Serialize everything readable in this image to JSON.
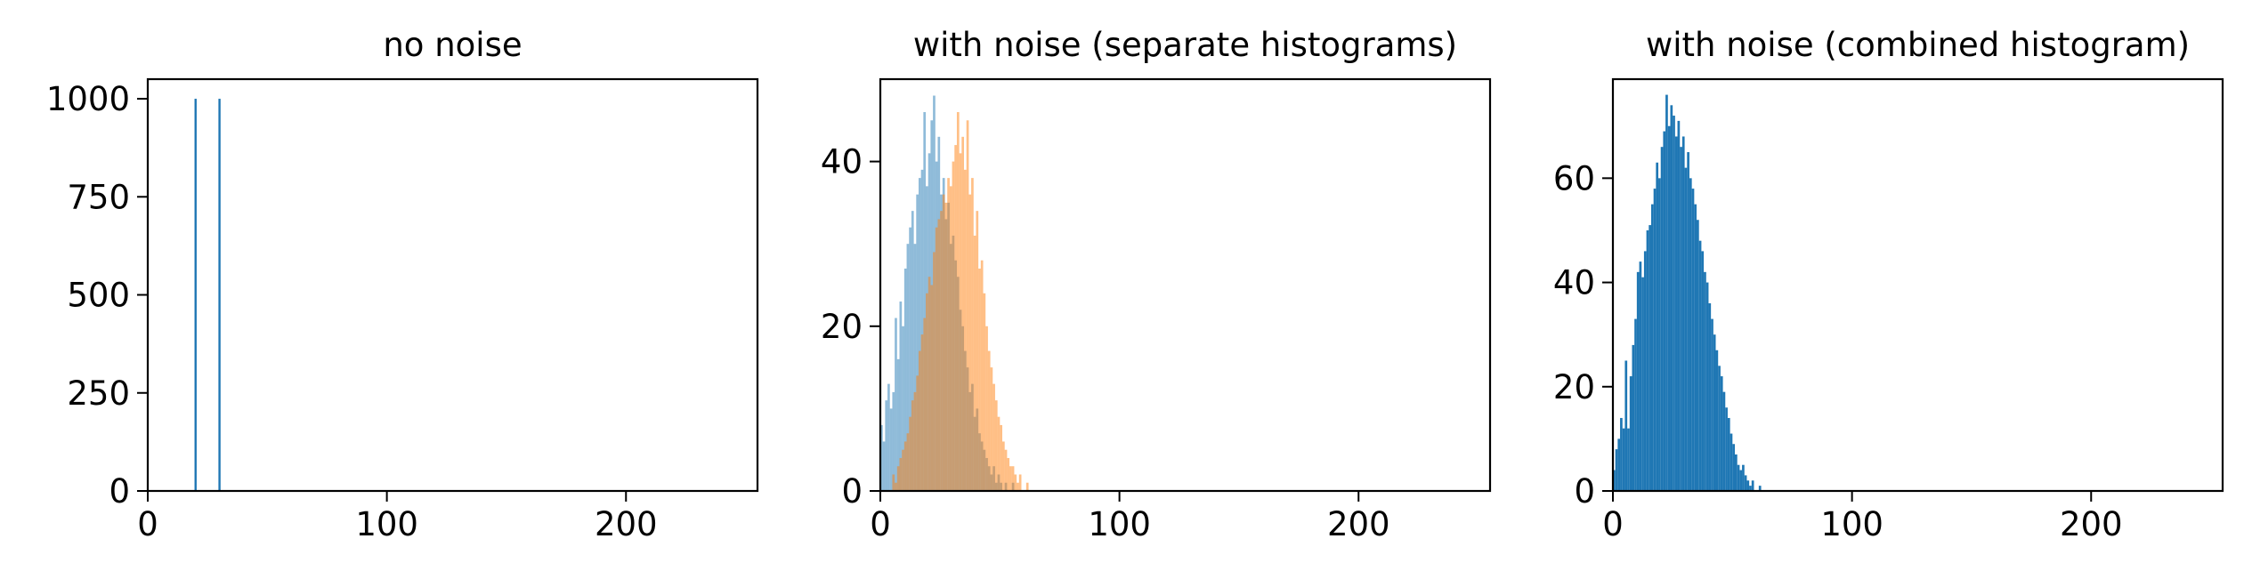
{
  "chart_data": [
    {
      "type": "bar",
      "title": "no noise",
      "xlim": [
        0,
        255
      ],
      "ylim": [
        0,
        1050
      ],
      "xticks": [
        "0",
        "100",
        "200"
      ],
      "yticks": [
        "0",
        "250",
        "500",
        "750",
        "1000"
      ],
      "colors": {
        "series1": "#1f77b4"
      },
      "series": [
        {
          "values": [
            [
              20,
              1000
            ],
            [
              30,
              1000
            ]
          ]
        }
      ]
    },
    {
      "type": "bar",
      "title": "with noise (separate histograms)",
      "xlim": [
        0,
        255
      ],
      "ylim": [
        0,
        50
      ],
      "xticks": [
        "0",
        "100",
        "200"
      ],
      "yticks": [
        "0",
        "20",
        "40"
      ],
      "colors": {
        "series1": "#1f77b4",
        "series2": "#ff7f0e"
      },
      "opacity": 0.5,
      "series": [
        {
          "values": [
            [
              0,
              8
            ],
            [
              1,
              6
            ],
            [
              2,
              11
            ],
            [
              3,
              13
            ],
            [
              4,
              10
            ],
            [
              5,
              12
            ],
            [
              6,
              21
            ],
            [
              7,
              16
            ],
            [
              8,
              23
            ],
            [
              9,
              20
            ],
            [
              10,
              27
            ],
            [
              11,
              30
            ],
            [
              12,
              32
            ],
            [
              13,
              34
            ],
            [
              14,
              30
            ],
            [
              15,
              36
            ],
            [
              16,
              38
            ],
            [
              17,
              39
            ],
            [
              18,
              46
            ],
            [
              19,
              37
            ],
            [
              20,
              41
            ],
            [
              21,
              45
            ],
            [
              22,
              48
            ],
            [
              23,
              40
            ],
            [
              24,
              43
            ],
            [
              25,
              36
            ],
            [
              26,
              38
            ],
            [
              27,
              33
            ],
            [
              28,
              35
            ],
            [
              29,
              30
            ],
            [
              30,
              31
            ],
            [
              31,
              28
            ],
            [
              32,
              26
            ],
            [
              33,
              22
            ],
            [
              34,
              20
            ],
            [
              35,
              17
            ],
            [
              36,
              15
            ],
            [
              37,
              12
            ],
            [
              38,
              13
            ],
            [
              39,
              9
            ],
            [
              40,
              10
            ],
            [
              41,
              7
            ],
            [
              42,
              6
            ],
            [
              43,
              5
            ],
            [
              44,
              4
            ],
            [
              45,
              3
            ],
            [
              46,
              2
            ],
            [
              47,
              3
            ],
            [
              48,
              1
            ],
            [
              49,
              2
            ],
            [
              50,
              1
            ],
            [
              52,
              1
            ],
            [
              55,
              1
            ]
          ]
        },
        {
          "values": [
            [
              5,
              2
            ],
            [
              6,
              1
            ],
            [
              7,
              3
            ],
            [
              8,
              4
            ],
            [
              9,
              5
            ],
            [
              10,
              6
            ],
            [
              11,
              7
            ],
            [
              12,
              9
            ],
            [
              13,
              11
            ],
            [
              14,
              12
            ],
            [
              15,
              14
            ],
            [
              16,
              17
            ],
            [
              17,
              19
            ],
            [
              18,
              21
            ],
            [
              19,
              24
            ],
            [
              20,
              26
            ],
            [
              21,
              25
            ],
            [
              22,
              29
            ],
            [
              23,
              32
            ],
            [
              24,
              33
            ],
            [
              25,
              34
            ],
            [
              26,
              36
            ],
            [
              27,
              35
            ],
            [
              28,
              38
            ],
            [
              29,
              37
            ],
            [
              30,
              40
            ],
            [
              31,
              42
            ],
            [
              32,
              46
            ],
            [
              33,
              41
            ],
            [
              34,
              43
            ],
            [
              35,
              39
            ],
            [
              36,
              45
            ],
            [
              37,
              36
            ],
            [
              38,
              38
            ],
            [
              39,
              31
            ],
            [
              40,
              34
            ],
            [
              41,
              27
            ],
            [
              42,
              28
            ],
            [
              43,
              24
            ],
            [
              44,
              20
            ],
            [
              45,
              17
            ],
            [
              46,
              15
            ],
            [
              47,
              13
            ],
            [
              48,
              11
            ],
            [
              49,
              9
            ],
            [
              50,
              8
            ],
            [
              51,
              6
            ],
            [
              52,
              5
            ],
            [
              53,
              4
            ],
            [
              54,
              3
            ],
            [
              55,
              3
            ],
            [
              56,
              2
            ],
            [
              57,
              1
            ],
            [
              58,
              2
            ],
            [
              61,
              1
            ]
          ]
        }
      ]
    },
    {
      "type": "bar",
      "title": "with noise (combined histogram)",
      "xlim": [
        0,
        255
      ],
      "ylim": [
        0,
        79
      ],
      "xticks": [
        "0",
        "100",
        "200"
      ],
      "yticks": [
        "0",
        "20",
        "40",
        "60"
      ],
      "colors": {
        "series1": "#1f77b4"
      },
      "series": [
        {
          "values": [
            [
              0,
              4
            ],
            [
              1,
              8
            ],
            [
              2,
              10
            ],
            [
              3,
              14
            ],
            [
              4,
              12
            ],
            [
              5,
              25
            ],
            [
              6,
              12
            ],
            [
              7,
              22
            ],
            [
              8,
              28
            ],
            [
              9,
              33
            ],
            [
              10,
              42
            ],
            [
              11,
              44
            ],
            [
              12,
              41
            ],
            [
              13,
              46
            ],
            [
              14,
              50
            ],
            [
              15,
              51
            ],
            [
              16,
              55
            ],
            [
              17,
              58
            ],
            [
              18,
              63
            ],
            [
              19,
              60
            ],
            [
              20,
              66
            ],
            [
              21,
              69
            ],
            [
              22,
              76
            ],
            [
              23,
              70
            ],
            [
              24,
              74
            ],
            [
              25,
              72
            ],
            [
              26,
              68
            ],
            [
              27,
              71
            ],
            [
              28,
              66
            ],
            [
              29,
              68
            ],
            [
              30,
              62
            ],
            [
              31,
              65
            ],
            [
              32,
              60
            ],
            [
              33,
              58
            ],
            [
              34,
              55
            ],
            [
              35,
              52
            ],
            [
              36,
              48
            ],
            [
              37,
              46
            ],
            [
              38,
              42
            ],
            [
              39,
              40
            ],
            [
              40,
              36
            ],
            [
              41,
              33
            ],
            [
              42,
              30
            ],
            [
              43,
              27
            ],
            [
              44,
              24
            ],
            [
              45,
              22
            ],
            [
              46,
              19
            ],
            [
              47,
              16
            ],
            [
              48,
              14
            ],
            [
              49,
              11
            ],
            [
              50,
              9
            ],
            [
              51,
              7
            ],
            [
              52,
              5
            ],
            [
              53,
              4
            ],
            [
              54,
              5
            ],
            [
              55,
              3
            ],
            [
              56,
              2
            ],
            [
              57,
              1
            ],
            [
              58,
              2
            ],
            [
              61,
              1
            ]
          ]
        }
      ]
    }
  ]
}
